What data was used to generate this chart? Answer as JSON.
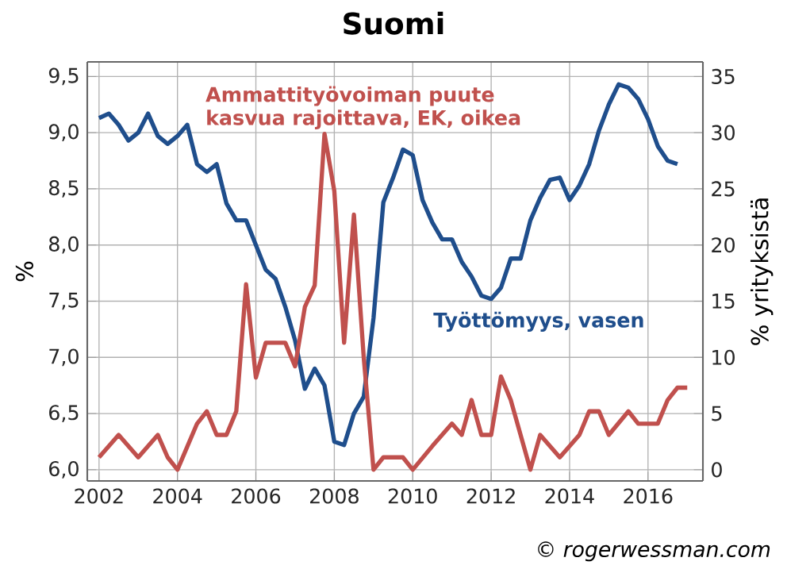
{
  "chart_data": {
    "type": "line",
    "title": "Suomi",
    "ylabel": "%",
    "y2label": "% yrityksistä",
    "xlim": [
      2001.7,
      2017.4
    ],
    "xticks": [
      2002,
      2004,
      2006,
      2008,
      2010,
      2012,
      2014,
      2016
    ],
    "ylim": [
      5.9,
      9.63
    ],
    "yticks": [
      {
        "value": 6.0,
        "label": "6,0"
      },
      {
        "value": 6.5,
        "label": "6,5"
      },
      {
        "value": 7.0,
        "label": "7,0"
      },
      {
        "value": 7.5,
        "label": "7,5"
      },
      {
        "value": 8.0,
        "label": "8,0"
      },
      {
        "value": 8.5,
        "label": "8,5"
      },
      {
        "value": 9.0,
        "label": "9,0"
      },
      {
        "value": 9.5,
        "label": "9,5"
      }
    ],
    "y2lim": [
      -1,
      36.3
    ],
    "y2ticks": [
      0,
      5,
      10,
      15,
      20,
      25,
      30,
      35
    ],
    "grid": true,
    "series": [
      {
        "name": "Työttömyys, vasen",
        "color": "#1f4e8c",
        "x": [
          2002.0,
          2002.25,
          2002.5,
          2002.75,
          2003.0,
          2003.25,
          2003.5,
          2003.75,
          2004.0,
          2004.25,
          2004.5,
          2004.75,
          2005.0,
          2005.25,
          2005.5,
          2005.75,
          2006.0,
          2006.25,
          2006.5,
          2006.75,
          2007.0,
          2007.25,
          2007.5,
          2007.75,
          2008.0,
          2008.25,
          2008.5,
          2008.75,
          2009.0,
          2009.25,
          2009.5,
          2009.75,
          2010.0,
          2010.25,
          2010.5,
          2010.75,
          2011.0,
          2011.25,
          2011.5,
          2011.75,
          2012.0,
          2012.25,
          2012.5,
          2012.75,
          2013.0,
          2013.25,
          2013.5,
          2013.75,
          2014.0,
          2014.25,
          2014.5,
          2014.75,
          2015.0,
          2015.25,
          2015.5,
          2015.75,
          2016.0,
          2016.25,
          2016.5,
          2016.75
        ],
        "values": [
          9.13,
          9.17,
          9.07,
          8.93,
          9.0,
          9.17,
          8.97,
          8.9,
          8.97,
          9.07,
          8.72,
          8.65,
          8.72,
          8.37,
          8.22,
          8.22,
          8.0,
          7.78,
          7.7,
          7.45,
          7.15,
          6.72,
          6.9,
          6.75,
          6.25,
          6.22,
          6.5,
          6.65,
          7.35,
          8.38,
          8.6,
          8.85,
          8.8,
          8.4,
          8.2,
          8.05,
          8.05,
          7.85,
          7.72,
          7.55,
          7.52,
          7.62,
          7.88,
          7.88,
          8.22,
          8.42,
          8.58,
          8.6,
          8.4,
          8.53,
          8.72,
          9.02,
          9.25,
          9.43,
          9.4,
          9.3,
          9.12,
          8.88,
          8.75,
          8.72
        ]
      },
      {
        "name": "Ammattityövoiman puute kasvua rajoittava, EK, oikea",
        "color": "#c0504d",
        "axis": "y2",
        "x": [
          2002.0,
          2002.5,
          2003.0,
          2003.5,
          2003.75,
          2004.0,
          2004.5,
          2004.75,
          2005.0,
          2005.25,
          2005.5,
          2005.75,
          2006.0,
          2006.25,
          2006.75,
          2007.0,
          2007.25,
          2007.5,
          2007.75,
          2008.0,
          2008.25,
          2008.5,
          2008.75,
          2009.0,
          2009.25,
          2009.75,
          2010.0,
          2010.5,
          2011.0,
          2011.25,
          2011.5,
          2011.75,
          2012.0,
          2012.25,
          2012.5,
          2013.0,
          2013.25,
          2013.75,
          2014.25,
          2014.5,
          2014.75,
          2015.0,
          2015.5,
          2015.75,
          2016.25,
          2016.5,
          2016.75,
          2017.0
        ],
        "values": [
          1.1,
          3.1,
          1.1,
          3.1,
          1.1,
          0,
          4.1,
          5.2,
          3.1,
          3.1,
          5.2,
          16.5,
          8.2,
          11.3,
          11.3,
          9.2,
          14.5,
          16.4,
          29.9,
          24.8,
          11.3,
          22.7,
          10,
          0,
          1.1,
          1.1,
          0,
          2.1,
          4.1,
          3.1,
          6.2,
          3.1,
          3.1,
          8.3,
          6.2,
          0,
          3.1,
          1.1,
          3.1,
          5.2,
          5.2,
          3.1,
          5.2,
          4.1,
          4.1,
          6.2,
          7.3,
          7.3
        ]
      }
    ],
    "annotations": [
      "© rogerwessman.com"
    ]
  }
}
